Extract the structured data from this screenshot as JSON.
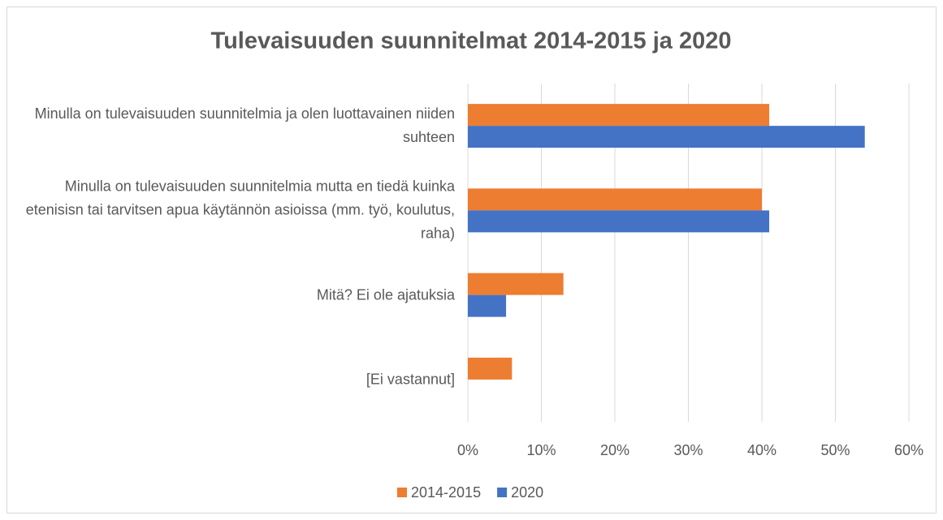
{
  "chart_data": {
    "type": "bar",
    "orientation": "horizontal",
    "title": "Tulevaisuuden suunnitelmat 2014-2015 ja 2020",
    "categories": [
      "Minulla on tulevaisuuden suunnitelmia ja olen luottavainen niiden suhteen",
      "Minulla on tulevaisuuden suunnitelmia mutta en tiedä kuinka etenisisn tai tarvitsen apua käytännön asioissa (mm. työ, koulutus, raha)",
      "Mitä? Ei ole ajatuksia",
      "[Ei vastannut]"
    ],
    "series": [
      {
        "name": "2014-2015",
        "color": "#ed7d31",
        "values": [
          41,
          40,
          13,
          6
        ]
      },
      {
        "name": "2020",
        "color": "#4472c4",
        "values": [
          54,
          41,
          5.2,
          0
        ]
      }
    ],
    "xlim": [
      0,
      60
    ],
    "xticks": [
      {
        "value": 0,
        "label": "0%"
      },
      {
        "value": 10,
        "label": "10%"
      },
      {
        "value": 20,
        "label": "20%"
      },
      {
        "value": 30,
        "label": "30%"
      },
      {
        "value": 40,
        "label": "40%"
      },
      {
        "value": 50,
        "label": "50%"
      },
      {
        "value": 60,
        "label": "60%"
      }
    ],
    "grid": true,
    "legend": "bottom"
  }
}
